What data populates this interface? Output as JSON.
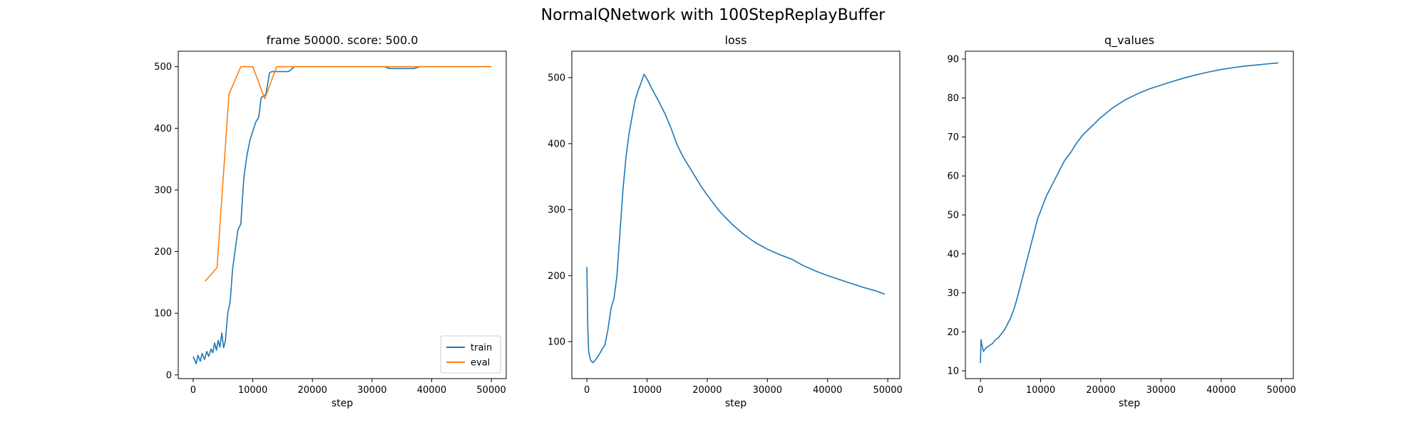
{
  "figure": {
    "title": "NormalQNetwork with 100StepReplayBuffer"
  },
  "colors": {
    "blue": "#1f77b4",
    "orange": "#ff7f0e"
  },
  "chart_data": [
    {
      "type": "line",
      "title": "frame 50000. score: 500.0",
      "xlabel": "step",
      "ylabel": "",
      "xlim": [
        -2500,
        52500
      ],
      "ylim": [
        -6,
        525
      ],
      "xticks": [
        0,
        10000,
        20000,
        30000,
        40000,
        50000
      ],
      "yticks": [
        0,
        100,
        200,
        300,
        400,
        500
      ],
      "legend": {
        "position": "lower-right",
        "entries": [
          "train",
          "eval"
        ]
      },
      "series": [
        {
          "name": "train",
          "color": "#1f77b4",
          "x": [
            0,
            500,
            800,
            1200,
            1500,
            1900,
            2300,
            2600,
            3000,
            3300,
            3600,
            3900,
            4200,
            4500,
            4800,
            5100,
            5400,
            5800,
            6200,
            6600,
            7000,
            7500,
            8000,
            8500,
            9000,
            9500,
            10000,
            10500,
            11000,
            11400,
            11800,
            12200,
            12800,
            13200,
            14000,
            16000,
            17000,
            19000,
            22000,
            25000,
            28000,
            31000,
            32000,
            33000,
            35000,
            37000,
            38000,
            40000,
            45000,
            50000
          ],
          "y": [
            30,
            18,
            32,
            22,
            35,
            25,
            38,
            30,
            42,
            36,
            52,
            40,
            56,
            45,
            68,
            44,
            55,
            100,
            118,
            170,
            200,
            235,
            245,
            320,
            355,
            380,
            395,
            410,
            418,
            450,
            452,
            455,
            490,
            492,
            492,
            492,
            500,
            500,
            500,
            500,
            500,
            500,
            500,
            497,
            497,
            497,
            500,
            500,
            500,
            500
          ]
        },
        {
          "name": "eval",
          "color": "#ff7f0e",
          "x": [
            2000,
            4000,
            6000,
            8000,
            10000,
            12000,
            14000,
            16000,
            18000,
            20000,
            22000,
            24000,
            26000,
            28000,
            30000,
            32000,
            34000,
            36000,
            38000,
            40000,
            42000,
            44000,
            46000,
            48000,
            50000
          ],
          "y": [
            152,
            174,
            455,
            500,
            500,
            448,
            500,
            500,
            500,
            500,
            500,
            500,
            500,
            500,
            500,
            500,
            500,
            500,
            500,
            500,
            500,
            500,
            500,
            500,
            500
          ]
        }
      ]
    },
    {
      "type": "line",
      "title": "loss",
      "xlabel": "step",
      "ylabel": "",
      "xlim": [
        -2500,
        52000
      ],
      "ylim": [
        44,
        540
      ],
      "xticks": [
        0,
        10000,
        20000,
        30000,
        40000,
        50000
      ],
      "yticks": [
        100,
        200,
        300,
        400,
        500
      ],
      "series": [
        {
          "name": "",
          "color": "#1f77b4",
          "x": [
            0,
            150,
            300,
            600,
            1000,
            1500,
            2000,
            2500,
            3000,
            3500,
            4000,
            4500,
            5000,
            5500,
            6000,
            6500,
            7000,
            7500,
            8000,
            8500,
            9000,
            9500,
            10000,
            11000,
            12000,
            13000,
            14000,
            15000,
            16000,
            17000,
            18000,
            19000,
            20000,
            22000,
            24000,
            26000,
            28000,
            30000,
            32000,
            34000,
            36000,
            38000,
            40000,
            42000,
            44000,
            46000,
            48000,
            49500
          ],
          "y": [
            213,
            120,
            85,
            72,
            68,
            73,
            80,
            88,
            95,
            118,
            150,
            165,
            200,
            265,
            330,
            380,
            415,
            440,
            465,
            480,
            492,
            505,
            498,
            480,
            463,
            445,
            423,
            398,
            380,
            365,
            350,
            335,
            322,
            298,
            279,
            263,
            250,
            240,
            232,
            225,
            215,
            207,
            200,
            194,
            188,
            182,
            177,
            172
          ]
        }
      ]
    },
    {
      "type": "line",
      "title": "q_values",
      "xlabel": "step",
      "ylabel": "",
      "xlim": [
        -2500,
        52000
      ],
      "ylim": [
        8,
        92
      ],
      "xticks": [
        0,
        10000,
        20000,
        30000,
        40000,
        50000
      ],
      "yticks": [
        10,
        20,
        30,
        40,
        50,
        60,
        70,
        80,
        90
      ],
      "series": [
        {
          "name": "",
          "color": "#1f77b4",
          "x": [
            0,
            100,
            200,
            500,
            1000,
            1500,
            2000,
            2500,
            3000,
            3500,
            4000,
            4500,
            5000,
            5500,
            6000,
            6500,
            7000,
            7500,
            8000,
            8500,
            9000,
            9500,
            10000,
            11000,
            12000,
            13000,
            14000,
            15000,
            16000,
            17000,
            18000,
            19000,
            20000,
            22000,
            24000,
            26000,
            28000,
            30000,
            32000,
            34000,
            36000,
            38000,
            40000,
            42000,
            44000,
            46000,
            48000,
            49500
          ],
          "y": [
            12,
            18,
            17,
            15,
            16,
            16.5,
            17,
            18,
            18.5,
            19.5,
            20.5,
            22,
            23.5,
            25.5,
            28,
            31,
            34,
            37,
            40,
            43,
            46,
            49,
            51,
            55,
            58,
            61,
            64,
            66,
            68.5,
            70.5,
            72,
            73.5,
            75,
            77.5,
            79.5,
            81,
            82.3,
            83.3,
            84.3,
            85.2,
            86,
            86.7,
            87.3,
            87.8,
            88.2,
            88.5,
            88.8,
            89
          ]
        }
      ]
    }
  ]
}
